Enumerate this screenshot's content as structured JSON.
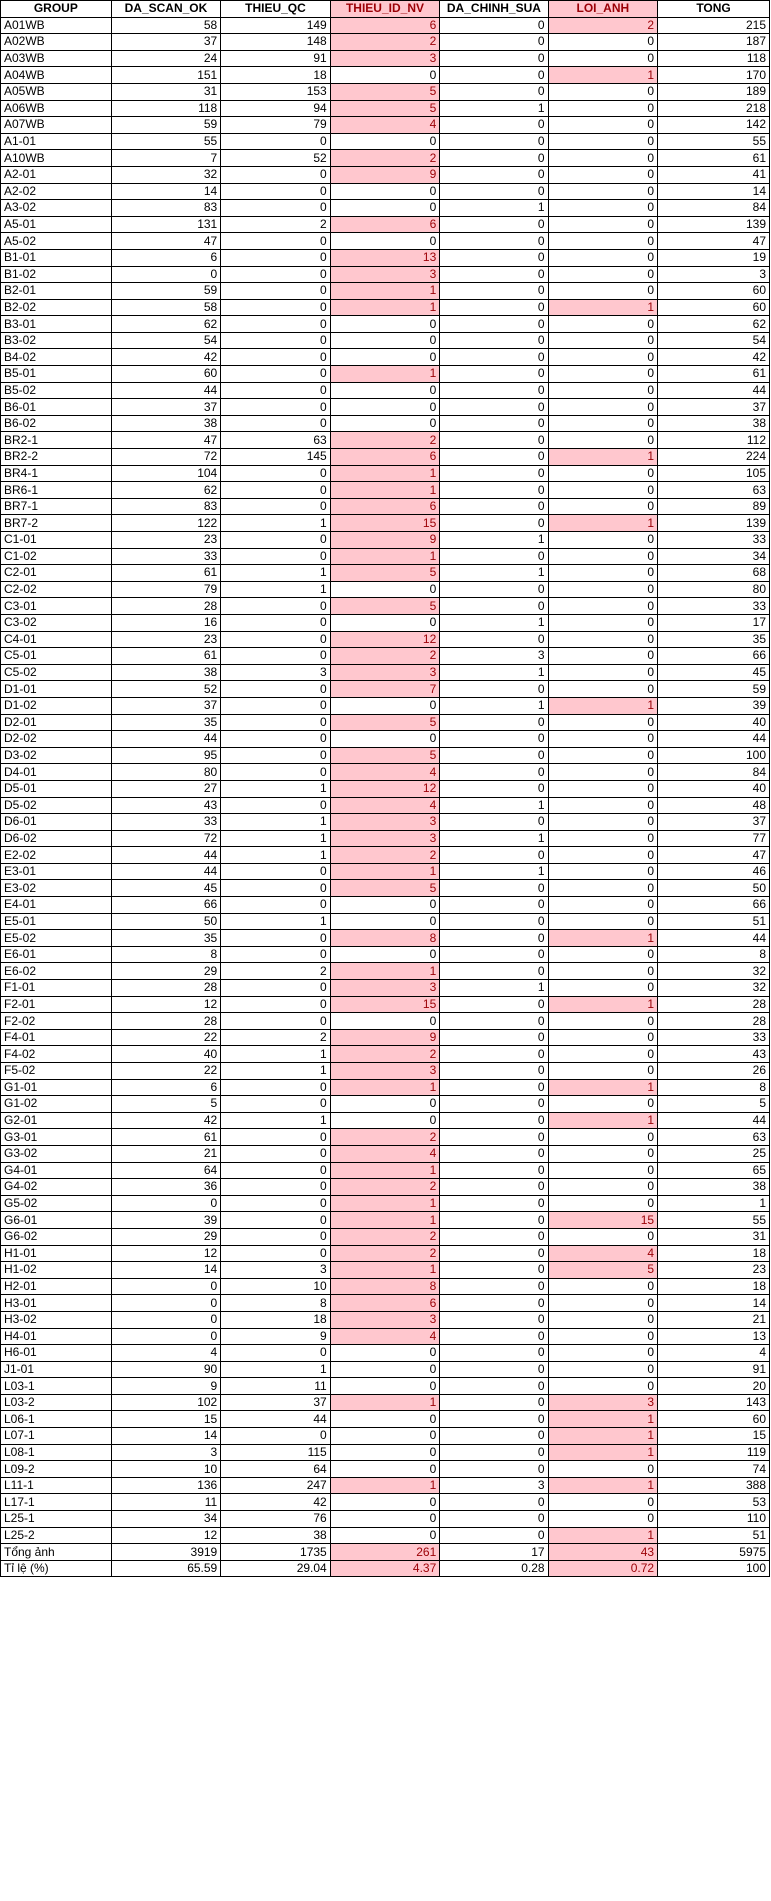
{
  "table": {
    "headers": [
      "GROUP",
      "DA_SCAN_OK",
      "THIEU_QC",
      "THIEU_ID_NV",
      "DA_CHINH_SUA",
      "LOI_ANH",
      "TONG"
    ],
    "highlight_color": "#ffc7ce",
    "highlight_text_color": "#9c0006",
    "rows": [
      [
        "A01WB",
        "58",
        "149",
        "6",
        "0",
        "2",
        "215"
      ],
      [
        "A02WB",
        "37",
        "148",
        "2",
        "0",
        "0",
        "187"
      ],
      [
        "A03WB",
        "24",
        "91",
        "3",
        "0",
        "0",
        "118"
      ],
      [
        "A04WB",
        "151",
        "18",
        "0",
        "0",
        "1",
        "170"
      ],
      [
        "A05WB",
        "31",
        "153",
        "5",
        "0",
        "0",
        "189"
      ],
      [
        "A06WB",
        "118",
        "94",
        "5",
        "1",
        "0",
        "218"
      ],
      [
        "A07WB",
        "59",
        "79",
        "4",
        "0",
        "0",
        "142"
      ],
      [
        "A1-01",
        "55",
        "0",
        "0",
        "0",
        "0",
        "55"
      ],
      [
        "A10WB",
        "7",
        "52",
        "2",
        "0",
        "0",
        "61"
      ],
      [
        "A2-01",
        "32",
        "0",
        "9",
        "0",
        "0",
        "41"
      ],
      [
        "A2-02",
        "14",
        "0",
        "0",
        "0",
        "0",
        "14"
      ],
      [
        "A3-02",
        "83",
        "0",
        "0",
        "1",
        "0",
        "84"
      ],
      [
        "A5-01",
        "131",
        "2",
        "6",
        "0",
        "0",
        "139"
      ],
      [
        "A5-02",
        "47",
        "0",
        "0",
        "0",
        "0",
        "47"
      ],
      [
        "B1-01",
        "6",
        "0",
        "13",
        "0",
        "0",
        "19"
      ],
      [
        "B1-02",
        "0",
        "0",
        "3",
        "0",
        "0",
        "3"
      ],
      [
        "B2-01",
        "59",
        "0",
        "1",
        "0",
        "0",
        "60"
      ],
      [
        "B2-02",
        "58",
        "0",
        "1",
        "0",
        "1",
        "60"
      ],
      [
        "B3-01",
        "62",
        "0",
        "0",
        "0",
        "0",
        "62"
      ],
      [
        "B3-02",
        "54",
        "0",
        "0",
        "0",
        "0",
        "54"
      ],
      [
        "B4-02",
        "42",
        "0",
        "0",
        "0",
        "0",
        "42"
      ],
      [
        "B5-01",
        "60",
        "0",
        "1",
        "0",
        "0",
        "61"
      ],
      [
        "B5-02",
        "44",
        "0",
        "0",
        "0",
        "0",
        "44"
      ],
      [
        "B6-01",
        "37",
        "0",
        "0",
        "0",
        "0",
        "37"
      ],
      [
        "B6-02",
        "38",
        "0",
        "0",
        "0",
        "0",
        "38"
      ],
      [
        "BR2-1",
        "47",
        "63",
        "2",
        "0",
        "0",
        "112"
      ],
      [
        "BR2-2",
        "72",
        "145",
        "6",
        "0",
        "1",
        "224"
      ],
      [
        "BR4-1",
        "104",
        "0",
        "1",
        "0",
        "0",
        "105"
      ],
      [
        "BR6-1",
        "62",
        "0",
        "1",
        "0",
        "0",
        "63"
      ],
      [
        "BR7-1",
        "83",
        "0",
        "6",
        "0",
        "0",
        "89"
      ],
      [
        "BR7-2",
        "122",
        "1",
        "15",
        "0",
        "1",
        "139"
      ],
      [
        "C1-01",
        "23",
        "0",
        "9",
        "1",
        "0",
        "33"
      ],
      [
        "C1-02",
        "33",
        "0",
        "1",
        "0",
        "0",
        "34"
      ],
      [
        "C2-01",
        "61",
        "1",
        "5",
        "1",
        "0",
        "68"
      ],
      [
        "C2-02",
        "79",
        "1",
        "0",
        "0",
        "0",
        "80"
      ],
      [
        "C3-01",
        "28",
        "0",
        "5",
        "0",
        "0",
        "33"
      ],
      [
        "C3-02",
        "16",
        "0",
        "0",
        "1",
        "0",
        "17"
      ],
      [
        "C4-01",
        "23",
        "0",
        "12",
        "0",
        "0",
        "35"
      ],
      [
        "C5-01",
        "61",
        "0",
        "2",
        "3",
        "0",
        "66"
      ],
      [
        "C5-02",
        "38",
        "3",
        "3",
        "1",
        "0",
        "45"
      ],
      [
        "D1-01",
        "52",
        "0",
        "7",
        "0",
        "0",
        "59"
      ],
      [
        "D1-02",
        "37",
        "0",
        "0",
        "1",
        "1",
        "39"
      ],
      [
        "D2-01",
        "35",
        "0",
        "5",
        "0",
        "0",
        "40"
      ],
      [
        "D2-02",
        "44",
        "0",
        "0",
        "0",
        "0",
        "44"
      ],
      [
        "D3-02",
        "95",
        "0",
        "5",
        "0",
        "0",
        "100"
      ],
      [
        "D4-01",
        "80",
        "0",
        "4",
        "0",
        "0",
        "84"
      ],
      [
        "D5-01",
        "27",
        "1",
        "12",
        "0",
        "0",
        "40"
      ],
      [
        "D5-02",
        "43",
        "0",
        "4",
        "1",
        "0",
        "48"
      ],
      [
        "D6-01",
        "33",
        "1",
        "3",
        "0",
        "0",
        "37"
      ],
      [
        "D6-02",
        "72",
        "1",
        "3",
        "1",
        "0",
        "77"
      ],
      [
        "E2-02",
        "44",
        "1",
        "2",
        "0",
        "0",
        "47"
      ],
      [
        "E3-01",
        "44",
        "0",
        "1",
        "1",
        "0",
        "46"
      ],
      [
        "E3-02",
        "45",
        "0",
        "5",
        "0",
        "0",
        "50"
      ],
      [
        "E4-01",
        "66",
        "0",
        "0",
        "0",
        "0",
        "66"
      ],
      [
        "E5-01",
        "50",
        "1",
        "0",
        "0",
        "0",
        "51"
      ],
      [
        "E5-02",
        "35",
        "0",
        "8",
        "0",
        "1",
        "44"
      ],
      [
        "E6-01",
        "8",
        "0",
        "0",
        "0",
        "0",
        "8"
      ],
      [
        "E6-02",
        "29",
        "2",
        "1",
        "0",
        "0",
        "32"
      ],
      [
        "F1-01",
        "28",
        "0",
        "3",
        "1",
        "0",
        "32"
      ],
      [
        "F2-01",
        "12",
        "0",
        "15",
        "0",
        "1",
        "28"
      ],
      [
        "F2-02",
        "28",
        "0",
        "0",
        "0",
        "0",
        "28"
      ],
      [
        "F4-01",
        "22",
        "2",
        "9",
        "0",
        "0",
        "33"
      ],
      [
        "F4-02",
        "40",
        "1",
        "2",
        "0",
        "0",
        "43"
      ],
      [
        "F5-02",
        "22",
        "1",
        "3",
        "0",
        "0",
        "26"
      ],
      [
        "G1-01",
        "6",
        "0",
        "1",
        "0",
        "1",
        "8"
      ],
      [
        "G1-02",
        "5",
        "0",
        "0",
        "0",
        "0",
        "5"
      ],
      [
        "G2-01",
        "42",
        "1",
        "0",
        "0",
        "1",
        "44"
      ],
      [
        "G3-01",
        "61",
        "0",
        "2",
        "0",
        "0",
        "63"
      ],
      [
        "G3-02",
        "21",
        "0",
        "4",
        "0",
        "0",
        "25"
      ],
      [
        "G4-01",
        "64",
        "0",
        "1",
        "0",
        "0",
        "65"
      ],
      [
        "G4-02",
        "36",
        "0",
        "2",
        "0",
        "0",
        "38"
      ],
      [
        "G5-02",
        "0",
        "0",
        "1",
        "0",
        "0",
        "1"
      ],
      [
        "G6-01",
        "39",
        "0",
        "1",
        "0",
        "15",
        "55"
      ],
      [
        "G6-02",
        "29",
        "0",
        "2",
        "0",
        "0",
        "31"
      ],
      [
        "H1-01",
        "12",
        "0",
        "2",
        "0",
        "4",
        "18"
      ],
      [
        "H1-02",
        "14",
        "3",
        "1",
        "0",
        "5",
        "23"
      ],
      [
        "H2-01",
        "0",
        "10",
        "8",
        "0",
        "0",
        "18"
      ],
      [
        "H3-01",
        "0",
        "8",
        "6",
        "0",
        "0",
        "14"
      ],
      [
        "H3-02",
        "0",
        "18",
        "3",
        "0",
        "0",
        "21"
      ],
      [
        "H4-01",
        "0",
        "9",
        "4",
        "0",
        "0",
        "13"
      ],
      [
        "H6-01",
        "4",
        "0",
        "0",
        "0",
        "0",
        "4"
      ],
      [
        "J1-01",
        "90",
        "1",
        "0",
        "0",
        "0",
        "91"
      ],
      [
        "L03-1",
        "9",
        "11",
        "0",
        "0",
        "0",
        "20"
      ],
      [
        "L03-2",
        "102",
        "37",
        "1",
        "0",
        "3",
        "143"
      ],
      [
        "L06-1",
        "15",
        "44",
        "0",
        "0",
        "1",
        "60"
      ],
      [
        "L07-1",
        "14",
        "0",
        "0",
        "0",
        "1",
        "15"
      ],
      [
        "L08-1",
        "3",
        "115",
        "0",
        "0",
        "1",
        "119"
      ],
      [
        "L09-2",
        "10",
        "64",
        "0",
        "0",
        "0",
        "74"
      ],
      [
        "L11-1",
        "136",
        "247",
        "1",
        "3",
        "1",
        "388"
      ],
      [
        "L17-1",
        "11",
        "42",
        "0",
        "0",
        "0",
        "53"
      ],
      [
        "L25-1",
        "34",
        "76",
        "0",
        "0",
        "0",
        "110"
      ],
      [
        "L25-2",
        "12",
        "38",
        "0",
        "0",
        "1",
        "51"
      ],
      [
        "Tổng ảnh",
        "3919",
        "1735",
        "261",
        "17",
        "43",
        "5975"
      ],
      [
        "Tỉ lệ (%)",
        "65.59",
        "29.04",
        "4.37",
        "0.28",
        "0.72",
        "100"
      ]
    ]
  }
}
